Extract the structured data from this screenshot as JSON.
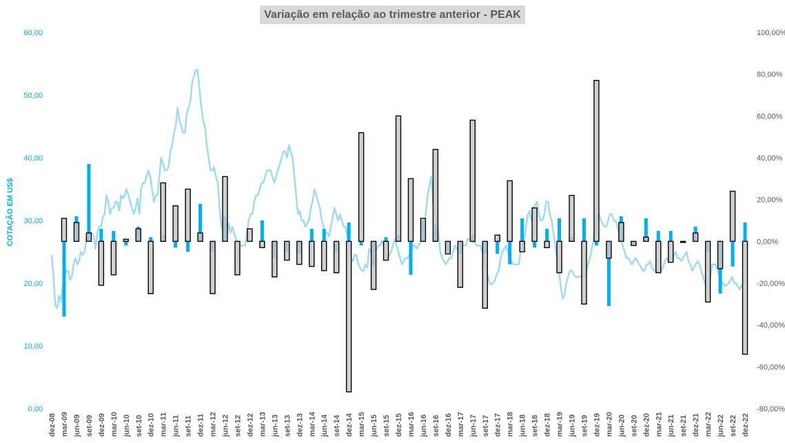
{
  "chart_data": {
    "type": "bar",
    "title": "Variação em relação ao trimestre anterior - PEAK",
    "ylabel_left": "COTAÇÃO EM US$",
    "y_left_ticks": [
      "0,00",
      "10,00",
      "20,00",
      "30,00",
      "40,00",
      "50,00",
      "60,00"
    ],
    "y_left_range": [
      0,
      60
    ],
    "y_right_ticks": [
      "-80,00%",
      "-60,00%",
      "-40,00%",
      "-20,00%",
      "0,00%",
      "20,00%",
      "40,00%",
      "60,00%",
      "80,00%",
      "100,00%"
    ],
    "y_right_range": [
      -80,
      100
    ],
    "categories": [
      "dez-08",
      "mar-09",
      "jun-09",
      "set-09",
      "dez-09",
      "mar-10",
      "jun-10",
      "set-10",
      "dez-10",
      "mar-11",
      "jun-11",
      "set-11",
      "dez-11",
      "mar-12",
      "jun-12",
      "set-12",
      "dez-12",
      "mar-13",
      "jun-13",
      "set-13",
      "dez-13",
      "mar-14",
      "jun-14",
      "set-14",
      "dez-14",
      "mar-15",
      "jun-15",
      "set-15",
      "dez-15",
      "mar-16",
      "jun-16",
      "set-16",
      "dez-16",
      "mar-17",
      "jun-17",
      "set-17",
      "dez-17",
      "mar-18",
      "jun-18",
      "set-18",
      "dez-18",
      "mar-19",
      "jun-19",
      "set-19",
      "dez-19",
      "mar-20",
      "jun-20",
      "set-20",
      "dez-20",
      "mar-21",
      "jun-21",
      "set-21",
      "dez-21",
      "mar-22",
      "jun-22",
      "set-22",
      "dez-22"
    ],
    "series": [
      {
        "values": [
          null,
          -36,
          12,
          37,
          6,
          5,
          -2,
          7,
          2,
          3,
          -3,
          -5,
          18,
          -5,
          12,
          0,
          0,
          10,
          -8,
          -5,
          -6,
          6,
          6,
          -5,
          9,
          -2,
          -12,
          2,
          3,
          -16,
          10,
          8,
          -5,
          -6,
          3,
          -6,
          -6,
          -11,
          11,
          -3,
          6,
          11,
          2,
          11,
          -2,
          -31,
          12,
          -2,
          11,
          5,
          5,
          0,
          7,
          -5,
          -25,
          -12,
          9
        ]
      },
      {
        "values": [
          null,
          11,
          9,
          4,
          -21,
          -16,
          1,
          6,
          -25,
          28,
          17,
          25,
          4,
          -25,
          31,
          -16,
          6,
          -3,
          -17,
          -9,
          -11,
          -12,
          -14,
          -15,
          -72,
          52,
          -23,
          -9,
          60,
          30,
          11,
          44,
          -6,
          -22,
          58,
          -32,
          3,
          29,
          -5,
          16,
          -3,
          -15,
          22,
          -30,
          77,
          -8,
          9,
          -2,
          2,
          -15,
          -10,
          0,
          4,
          -29,
          -13,
          24,
          -54
        ]
      }
    ],
    "price_series": {
      "values": [
        24.5,
        21,
        16.5,
        16,
        18,
        17,
        19.5,
        21,
        22,
        22,
        20.5,
        21,
        23,
        24,
        23,
        23.5,
        25,
        24.5,
        25,
        27,
        26.8,
        28,
        28,
        27.5,
        25.5,
        28,
        29,
        29,
        30.5,
        31,
        34,
        33,
        31,
        32,
        32,
        33,
        33,
        31.5,
        34,
        33.5,
        34,
        35,
        34,
        33,
        32,
        31,
        32,
        33.5,
        31,
        35,
        36,
        36,
        37,
        38,
        37,
        35,
        33,
        34,
        34,
        37,
        40,
        39,
        38,
        38,
        38.5,
        41,
        42,
        44,
        45,
        48,
        46,
        45,
        44,
        44,
        47,
        48,
        49,
        52,
        53,
        54,
        54,
        51,
        48,
        46,
        45,
        42,
        40,
        38,
        38,
        38.5,
        37,
        36,
        32,
        29,
        28.5,
        28,
        28,
        29.5,
        28,
        29,
        28,
        27,
        26.5,
        26,
        26,
        26,
        26,
        28,
        30,
        31,
        31,
        33,
        34,
        34,
        35,
        36,
        36,
        37,
        38,
        38,
        38,
        37,
        36,
        37,
        38,
        39,
        40,
        41,
        41,
        40,
        42,
        41,
        40,
        37,
        34,
        31,
        31.5,
        30,
        30,
        29,
        29.5,
        30,
        32,
        33,
        35,
        34,
        33,
        32,
        30,
        29,
        28,
        28,
        27.5,
        29,
        30.5,
        32,
        31,
        30,
        31,
        30,
        29,
        29,
        27.5,
        26,
        24,
        23.5,
        24.5,
        24.5,
        23,
        22.5,
        22,
        22,
        23,
        22.5,
        25.5,
        25,
        24,
        25,
        25.5,
        26,
        26,
        26.8,
        26,
        24.5,
        24,
        24.5,
        25,
        26,
        27,
        26,
        25,
        24,
        23,
        23.5,
        24,
        24,
        24.5,
        25,
        26,
        26,
        25.5,
        26,
        26.5,
        27,
        28,
        31,
        34,
        35.5,
        37,
        33,
        31,
        30,
        28,
        25,
        24,
        23.5,
        23,
        23.5,
        24,
        24,
        25,
        26,
        25.5,
        25.5,
        26,
        26,
        26,
        26,
        27,
        27,
        27,
        26.5,
        26.5,
        26,
        26,
        26,
        25,
        24,
        22.5,
        21,
        20,
        19.8,
        20,
        20.5,
        21.5,
        22,
        24,
        25,
        25.5,
        26,
        25,
        24,
        23.5,
        23,
        23,
        23,
        23,
        25,
        26,
        27,
        29,
        31,
        31.5,
        30,
        32,
        32.5,
        33,
        31,
        30,
        30,
        31,
        33,
        33,
        31,
        30,
        28,
        26,
        24,
        22,
        19.5,
        17.5,
        18,
        20,
        21,
        22,
        22,
        21.5,
        21,
        21,
        21,
        21,
        21.5,
        21,
        22,
        23,
        24,
        25.5,
        27,
        29,
        31,
        31,
        30,
        29.5,
        29,
        29,
        30,
        31,
        31,
        30,
        30,
        29,
        28,
        27,
        26,
        25,
        24,
        24,
        23.5,
        23,
        23.5,
        24,
        23.5,
        23,
        22.5,
        22,
        22,
        23,
        23,
        23.5,
        22.5,
        22,
        22,
        22,
        22,
        22,
        22.5,
        23.5,
        24,
        23.5,
        24,
        24,
        24.5,
        25,
        24,
        24,
        23.5,
        24,
        24.5,
        25,
        23.5,
        23,
        22,
        22.5,
        23,
        23.5,
        23,
        22,
        21,
        20,
        19.5,
        19,
        21,
        23,
        23,
        23,
        22,
        21,
        20,
        20,
        19.5,
        19.8,
        20,
        20.5,
        21,
        20,
        20,
        19.5,
        19,
        19.5,
        20,
        20.5
      ]
    }
  }
}
